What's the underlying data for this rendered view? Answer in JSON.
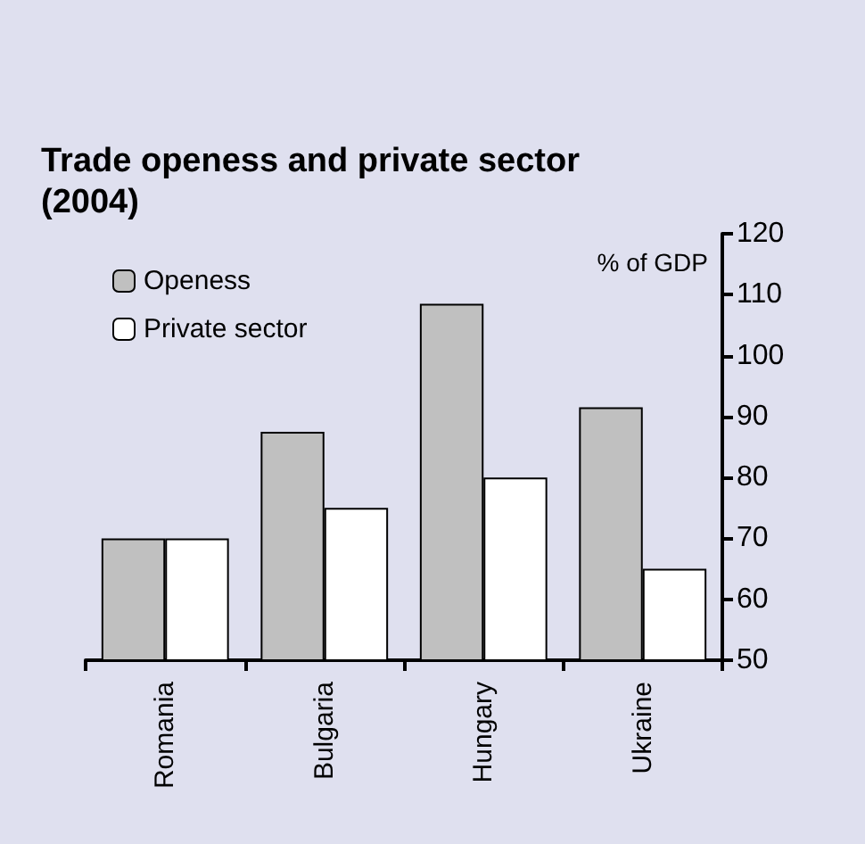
{
  "chart_data": {
    "type": "bar",
    "title": "Trade openess and private sector (2004)",
    "annotations": [
      "% of GDP"
    ],
    "categories": [
      "Romania",
      "Bulgaria",
      "Hungary",
      "Ukraine"
    ],
    "series": [
      {
        "name": "Openess",
        "color": "#c0c0c0",
        "values": [
          70,
          87.5,
          108.5,
          91.5
        ]
      },
      {
        "name": "Private sector",
        "color": "#ffffff",
        "values": [
          70,
          75,
          80,
          65
        ]
      }
    ],
    "ylim": [
      50,
      120
    ],
    "yticks": [
      50,
      60,
      70,
      80,
      90,
      100,
      110,
      120
    ],
    "grid": false,
    "legend": "top left"
  }
}
